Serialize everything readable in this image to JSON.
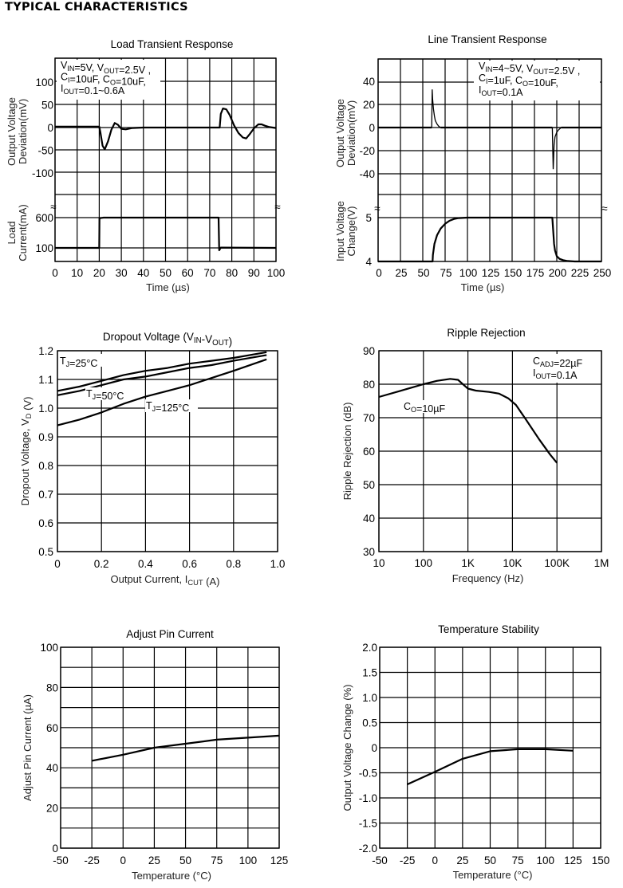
{
  "heading": "TYPICAL CHARACTERISTICS",
  "chart_data": [
    {
      "id": "load-transient",
      "type": "line",
      "title": "Load Transient Response",
      "xlabel": "Time (µs)",
      "xlim": [
        0,
        100
      ],
      "xticks": [
        "0",
        "10",
        "20",
        "30",
        "40",
        "50",
        "60",
        "70",
        "80",
        "90",
        "100"
      ],
      "upper": {
        "ylabel": [
          "Output Voltage",
          "Deviation(mV)"
        ],
        "ylim": [
          -150,
          150
        ],
        "yticks": [
          "100",
          "50",
          "0",
          "-50",
          "-100"
        ],
        "ytick_values": [
          100,
          50,
          0,
          -50,
          -100
        ],
        "series": [
          {
            "name": "Output Voltage Deviation",
            "x": [
              0,
              20,
              20.5,
              21.5,
              22.5,
              24,
              25.5,
              27,
              28.5,
              30,
              32,
              35,
              40,
              50,
              60,
              70,
              74.5,
              75,
              76,
              77.5,
              79,
              81,
              83,
              85,
              86.5,
              88,
              90,
              92,
              93.5,
              95,
              97,
              100
            ],
            "y": [
              2,
              2,
              -10,
              -40,
              -48,
              -30,
              -5,
              10,
              6,
              -3,
              -4,
              -1,
              0,
              0,
              0,
              0,
              0,
              30,
              42,
              40,
              28,
              5,
              -12,
              -22,
              -24,
              -15,
              -2,
              7,
              7,
              4,
              1,
              -1
            ]
          }
        ]
      },
      "lower": {
        "ylabel": [
          "Load",
          "Current(mA)"
        ],
        "yticks": [
          "600",
          "100"
        ],
        "ytick_values": [
          600,
          100
        ],
        "series": [
          {
            "name": "Load Current",
            "x": [
              0,
              20,
              20.1,
              22,
              73.8,
              74,
              74.3,
              75,
              100
            ],
            "y": [
              100,
              100,
              590,
              600,
              600,
              600,
              60,
              105,
              100
            ]
          }
        ]
      },
      "annotation": [
        "V_IN=5V, V_OUT=2.5V ,",
        "C_I=10uF, C_O=10uF,",
        "I_OUT=0.1~0.6A"
      ],
      "break_symbol": "≈"
    },
    {
      "id": "line-transient",
      "type": "line",
      "title": "Line Transient Response",
      "xlabel": "Time (µs)",
      "xlim": [
        0,
        250
      ],
      "xticks": [
        "0",
        "25",
        "50",
        "75",
        "100",
        "125",
        "150",
        "175",
        "200",
        "225",
        "250"
      ],
      "upper": {
        "ylabel": [
          "Output Voltage",
          "Deviation(mV)"
        ],
        "ylim": [
          -60,
          60
        ],
        "yticks": [
          "40",
          "20",
          "0",
          "-20",
          "-40"
        ],
        "ytick_values": [
          40,
          20,
          0,
          -20,
          -40
        ],
        "series": [
          {
            "name": "Output Voltage Deviation",
            "x": [
              0,
              60,
              60.5,
              61,
              62,
              63,
              64,
              66,
              68,
              70,
              250
            ],
            "y": [
              0,
              0,
              33,
              25,
              16,
              10,
              6,
              3,
              1,
              0,
              0
            ],
            "x2": [
              195,
              195.5,
              196,
              196.5,
              197,
              198,
              200,
              202,
              205,
              250
            ],
            "y2": [
              0,
              -20,
              -36,
              -25,
              -15,
              -8,
              -4,
              -2,
              0,
              0
            ]
          }
        ]
      },
      "lower": {
        "ylabel": [
          "Input Voltage",
          "Change(V)"
        ],
        "yticks": [
          "5",
          "4"
        ],
        "ytick_values": [
          5,
          4
        ],
        "series": [
          {
            "name": "Input Voltage",
            "x": [
              0,
              61,
              61.3,
              63,
              66,
              70,
              75,
              80,
              85,
              90,
              100,
              195,
              196,
              197,
              198,
              200,
              203,
              207,
              212,
              220,
              230,
              250
            ],
            "y": [
              4,
              4,
              4.15,
              4.4,
              4.6,
              4.75,
              4.86,
              4.93,
              4.97,
              4.99,
              5,
              5,
              4.7,
              4.4,
              4.25,
              4.12,
              4.06,
              4.03,
              4.01,
              4,
              4,
              4
            ]
          }
        ]
      },
      "annotation": [
        "V_IN=4~5V, V_OUT=2.5V ,",
        "C_I=1uF, C_O=10uF,",
        "I_OUT=0.1A"
      ],
      "break_symbol": "≈"
    },
    {
      "id": "dropout-voltage",
      "type": "line",
      "title": "Dropout Voltage (V_IN-V_OUT)",
      "xlabel": "Output Current, I_CUT (A)",
      "ylabel": "Dropout Voltage, V_D (V)",
      "xlim": [
        0,
        1.0
      ],
      "ylim": [
        0.5,
        1.2
      ],
      "xticks": [
        "0",
        "0.2",
        "0.4",
        "0.6",
        "0.8",
        "1.0"
      ],
      "yticks": [
        "1.2",
        "1.1",
        "1.0",
        "0.9",
        "0.8",
        "0.7",
        "0.6",
        "0.5"
      ],
      "series": [
        {
          "name": "T_J=25°C",
          "x": [
            0,
            0.1,
            0.2,
            0.3,
            0.4,
            0.5,
            0.6,
            0.7,
            0.8,
            0.95
          ],
          "y": [
            1.06,
            1.075,
            1.095,
            1.115,
            1.13,
            1.14,
            1.155,
            1.165,
            1.175,
            1.195
          ]
        },
        {
          "name": "T_J=50°C",
          "x": [
            0,
            0.1,
            0.2,
            0.3,
            0.4,
            0.5,
            0.6,
            0.7,
            0.8,
            0.95
          ],
          "y": [
            1.045,
            1.06,
            1.08,
            1.1,
            1.11,
            1.125,
            1.14,
            1.15,
            1.165,
            1.185
          ]
        },
        {
          "name": "T_J=125°C",
          "x": [
            0,
            0.1,
            0.2,
            0.3,
            0.4,
            0.5,
            0.6,
            0.7,
            0.8,
            0.95
          ],
          "y": [
            0.94,
            0.96,
            0.985,
            1.015,
            1.04,
            1.06,
            1.08,
            1.105,
            1.13,
            1.17
          ]
        }
      ],
      "labels": [
        "T_J=25°C",
        "T_J=50°C",
        "T_J=125°C"
      ]
    },
    {
      "id": "ripple-rejection",
      "type": "line",
      "title": "Ripple Rejection",
      "xlabel": "Frequency (Hz)",
      "ylabel": "Ripple Rejection (dB)",
      "xscale": "log",
      "xlim": [
        10,
        1000000
      ],
      "ylim": [
        30,
        90
      ],
      "xticks": [
        "10",
        "100",
        "1K",
        "10K",
        "100K",
        "1M"
      ],
      "yticks": [
        "90",
        "80",
        "70",
        "60",
        "50",
        "40",
        "30"
      ],
      "series": [
        {
          "name": "C_O=10µF",
          "x": [
            10,
            30,
            100,
            200,
            400,
            600,
            800,
            1000,
            1500,
            3000,
            5000,
            8000,
            12000,
            20000,
            40000,
            70000,
            100000
          ],
          "y": [
            76.2,
            78,
            80,
            81,
            81.6,
            81.3,
            79.8,
            78.7,
            78.1,
            77.7,
            77.2,
            75.8,
            73.8,
            69.5,
            63.5,
            59,
            56.5
          ]
        }
      ],
      "annotation": [
        "C_ADJ=22µF",
        "I_OUT=0.1A"
      ],
      "series_label": "C_O=10µF"
    },
    {
      "id": "adjust-pin-current",
      "type": "line",
      "title": "Adjust Pin Current",
      "xlabel": "Temperature (°C)",
      "ylabel": "Adjust Pin Current (µA)",
      "xlim": [
        -50,
        125
      ],
      "ylim": [
        0,
        100
      ],
      "xticks": [
        "-50",
        "-25",
        "0",
        "25",
        "50",
        "75",
        "100",
        "125"
      ],
      "yticks": [
        "100",
        "80",
        "60",
        "40",
        "20",
        "0"
      ],
      "series": [
        {
          "name": "Adjust Pin Current",
          "x": [
            -25,
            0,
            25,
            50,
            75,
            100,
            125
          ],
          "y": [
            43.5,
            46.5,
            50,
            52,
            54,
            55,
            56
          ]
        }
      ]
    },
    {
      "id": "temperature-stability",
      "type": "line",
      "title": "Temperature Stability",
      "xlabel": "Temperature (°C)",
      "ylabel": "Output Voltage Change (%)",
      "xlim": [
        -50,
        150
      ],
      "ylim": [
        -2.0,
        2.0
      ],
      "xticks": [
        "-50",
        "-25",
        "0",
        "25",
        "50",
        "75",
        "100",
        "125",
        "150"
      ],
      "yticks": [
        "2.0",
        "1.5",
        "1.0",
        "0.5",
        "0",
        "-0.5",
        "-1.0",
        "-1.5",
        "-2.0"
      ],
      "series": [
        {
          "name": "Output Voltage Change",
          "x": [
            -25,
            0,
            25,
            50,
            75,
            100,
            125
          ],
          "y": [
            -0.73,
            -0.48,
            -0.22,
            -0.07,
            -0.03,
            -0.03,
            -0.06
          ]
        }
      ]
    }
  ]
}
